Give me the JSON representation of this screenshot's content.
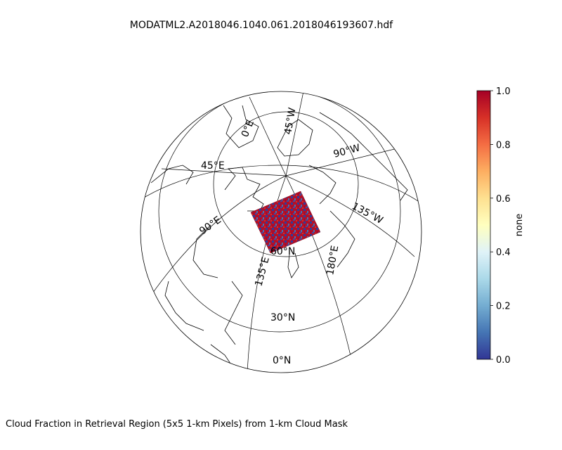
{
  "figure": {
    "title": "MODATML2.A2018046.1040.061.2018046193607.hdf",
    "caption": "Cloud Fraction in Retrieval Region (5x5 1-km Pixels) from 1-km Cloud Mask"
  },
  "map": {
    "projection": "orthographic, north polar region",
    "meridian_labels": [
      "0°E",
      "45°E",
      "90°E",
      "135°E",
      "180°E",
      "135°W",
      "90°W",
      "45°W"
    ],
    "parallel_labels": [
      "60°N",
      "30°N",
      "0°N"
    ],
    "data_granule": {
      "description": "MODIS swath granule of cloud fraction",
      "color_map": "RdYlBu_r"
    }
  },
  "colorbar": {
    "label": "none",
    "range": [
      0.0,
      1.0
    ],
    "ticks": [
      "0.0",
      "0.2",
      "0.4",
      "0.6",
      "0.8",
      "1.0"
    ],
    "colors": [
      "#313695",
      "#4575b4",
      "#74add1",
      "#abd9e9",
      "#e0f3f8",
      "#ffffbf",
      "#fee090",
      "#fdae61",
      "#f46d43",
      "#d73027",
      "#a50026"
    ]
  }
}
